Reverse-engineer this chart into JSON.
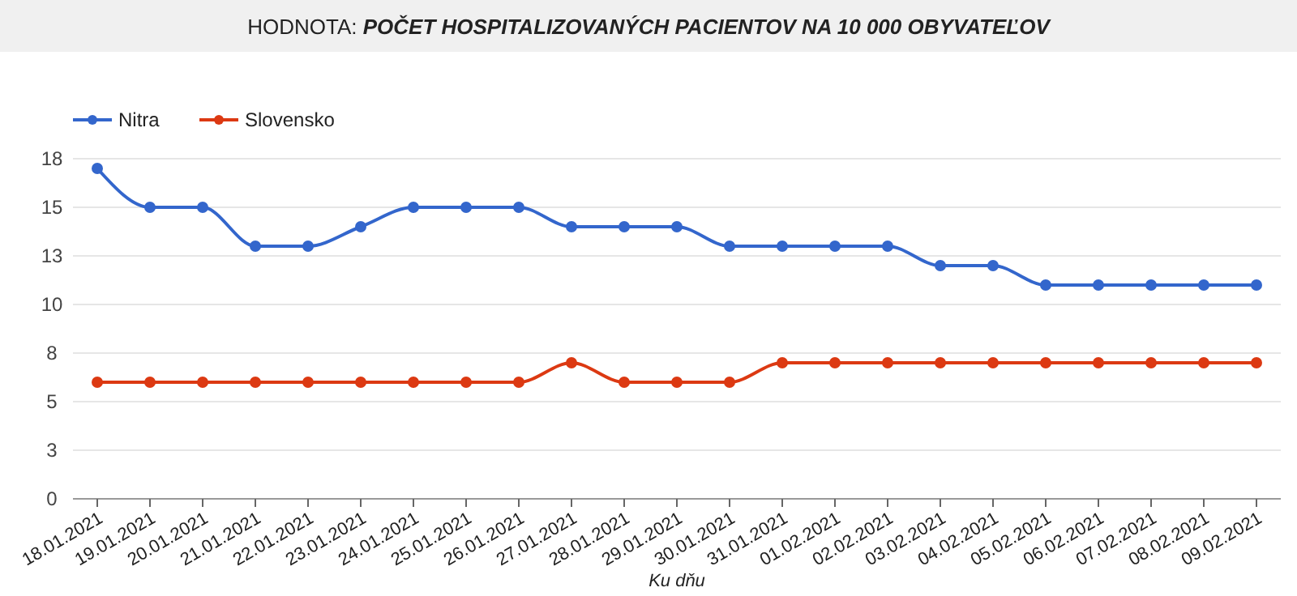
{
  "chart_data": {
    "type": "line",
    "title": "HODNOTA: POČET HOSPITALIZOVANÝCH PACIENTOV NA 10 000 OBYVATEĽOV",
    "xlabel": "Ku dňu",
    "categories": [
      "18.01.2021",
      "19.01.2021",
      "20.01.2021",
      "21.01.2021",
      "22.01.2021",
      "23.01.2021",
      "24.01.2021",
      "25.01.2021",
      "26.01.2021",
      "27.01.2021",
      "28.01.2021",
      "29.01.2021",
      "30.01.2021",
      "31.01.2021",
      "01.02.2021",
      "02.02.2021",
      "03.02.2021",
      "04.02.2021",
      "05.02.2021",
      "06.02.2021",
      "07.02.2021",
      "08.02.2021",
      "09.02.2021"
    ],
    "series": [
      {
        "name": "Nitra",
        "color": "#3366cc",
        "values": [
          17,
          15,
          15,
          13,
          13,
          14,
          15,
          15,
          15,
          14,
          14,
          14,
          13,
          13,
          13,
          13,
          12,
          12,
          11,
          11,
          11,
          11,
          11
        ]
      },
      {
        "name": "Slovensko",
        "color": "#dc3912",
        "values": [
          6,
          6,
          6,
          6,
          6,
          6,
          6,
          6,
          6,
          7,
          6,
          6,
          6,
          7,
          7,
          7,
          7,
          7,
          7,
          7,
          7,
          7,
          7
        ]
      }
    ],
    "ylim": [
      0,
      17.5
    ],
    "yticks": [
      0,
      {
        "value": 2.5,
        "label": "3"
      },
      5,
      {
        "value": 7.5,
        "label": "8"
      },
      10,
      {
        "value": 12.5,
        "label": "13"
      },
      15,
      {
        "value": 17.5,
        "label": "18"
      }
    ],
    "grid": "y",
    "legend": "top left",
    "marker": "circle",
    "line_style": "solid"
  }
}
